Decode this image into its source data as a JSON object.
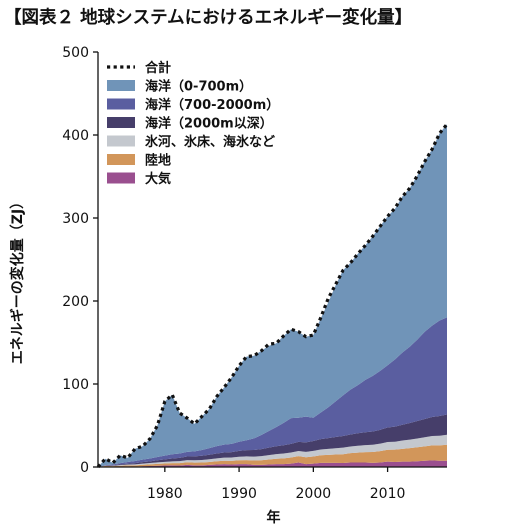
{
  "title": "【図表２ 地球システムにおけるエネルギー変化量】",
  "chart_data": {
    "type": "area",
    "stacked": true,
    "title": "【図表２ 地球システムにおけるエネルギー変化量】",
    "xlabel": "年",
    "ylabel": "エネルギーの変化量（ZJ）",
    "xlim": [
      1971,
      2018
    ],
    "ylim": [
      0,
      500
    ],
    "xticks": [
      1980,
      1990,
      2000,
      2010
    ],
    "yticks": [
      0,
      100,
      200,
      300,
      400,
      500
    ],
    "legend_position": "top-left",
    "total_name": "合計",
    "total_style": "dotted",
    "total_color": "#111111",
    "x": [
      1971,
      1972,
      1973,
      1974,
      1975,
      1976,
      1977,
      1978,
      1979,
      1980,
      1981,
      1982,
      1983,
      1984,
      1985,
      1986,
      1987,
      1988,
      1989,
      1990,
      1991,
      1992,
      1993,
      1994,
      1995,
      1996,
      1997,
      1998,
      1999,
      2000,
      2001,
      2002,
      2003,
      2004,
      2005,
      2006,
      2007,
      2008,
      2009,
      2010,
      2011,
      2012,
      2013,
      2014,
      2015,
      2016,
      2017,
      2018
    ],
    "series": [
      {
        "name": "大気",
        "color": "#9a4f8f",
        "values": [
          0,
          0.5,
          0.3,
          0.5,
          0.8,
          0.5,
          1,
          1.2,
          1.5,
          1.8,
          2,
          1.8,
          2.5,
          2,
          2,
          2.5,
          3,
          3.5,
          3,
          3.5,
          3.5,
          2.5,
          2.5,
          3,
          3.5,
          3.5,
          4,
          5.5,
          3.5,
          4,
          5,
          5,
          5,
          4.8,
          5.5,
          5.5,
          5.5,
          5,
          5.5,
          6.5,
          6,
          6.5,
          6.5,
          7,
          7.5,
          8,
          7.5,
          7.5
        ]
      },
      {
        "name": "陸地",
        "color": "#d2965a",
        "values": [
          0,
          0.8,
          0.7,
          1,
          1.2,
          1.5,
          1.7,
          2,
          2.2,
          2.4,
          2.6,
          2.9,
          3.2,
          3.3,
          3.5,
          3.6,
          3.9,
          4.1,
          4.4,
          4.6,
          4.8,
          5.3,
          5.6,
          6,
          6.5,
          6.9,
          7.4,
          7.6,
          8.2,
          8.6,
          9.1,
          9.6,
          10.1,
          10.6,
          11.2,
          11.8,
          12.4,
          13.1,
          13.6,
          14.3,
          14.9,
          15.4,
          16.2,
          16.8,
          17.4,
          18,
          18.6,
          19.3
        ]
      },
      {
        "name": "氷河、氷床、海氷など",
        "color": "#c4c8ce",
        "values": [
          0,
          0.2,
          0.5,
          0.8,
          1,
          1.2,
          1.4,
          1.6,
          1.9,
          2,
          2.2,
          2.4,
          2.6,
          2.8,
          3,
          3.3,
          3.5,
          3.7,
          4,
          4.3,
          4.5,
          4.7,
          5,
          5.3,
          5.5,
          5.8,
          6,
          6.2,
          6.5,
          6.8,
          7,
          7.2,
          7.5,
          7.9,
          8,
          8.3,
          8.5,
          8.7,
          9,
          9.3,
          9.6,
          10,
          10.3,
          10.6,
          11,
          11.3,
          11.6,
          12
        ]
      },
      {
        "name": "海洋（2000m以深）",
        "color": "#463e6a",
        "values": [
          0,
          0.2,
          0.5,
          0.8,
          1,
          1.5,
          1.8,
          2,
          2.5,
          3,
          3.5,
          3.9,
          4.3,
          4.7,
          5,
          5.4,
          5.8,
          6.2,
          6.5,
          7,
          7.5,
          8,
          8.5,
          9,
          9.5,
          10,
          10.5,
          11,
          11.5,
          12,
          12.5,
          13,
          13.5,
          14,
          14.5,
          15,
          15.5,
          16,
          16.7,
          17.5,
          18.2,
          19,
          20,
          21,
          22,
          23,
          23.8,
          24.5
        ]
      },
      {
        "name": "海洋（700-2000m）",
        "color": "#5a5ea0",
        "values": [
          0,
          0.5,
          1,
          1.5,
          2,
          2.5,
          3,
          3.5,
          4,
          4.5,
          5,
          5.3,
          5.6,
          6,
          7,
          8,
          9,
          9.5,
          10,
          11,
          12,
          14,
          17,
          20,
          23,
          27,
          31,
          29,
          31,
          28,
          32,
          37,
          43,
          49,
          54,
          58,
          63,
          67,
          71,
          75,
          81,
          87,
          92,
          98,
          105,
          110,
          115,
          117
        ]
      },
      {
        "name": "海洋（0-700m）",
        "color": "#7094b8",
        "values": [
          0,
          7.8,
          2,
          9.4,
          5,
          14.8,
          16.1,
          23.7,
          37.9,
          65.3,
          71.7,
          48.6,
          40.8,
          33.2,
          40.5,
          47.2,
          59.8,
          69,
          80.1,
          91.6,
          100.7,
          99.5,
          101.4,
          102.7,
          101,
          104.8,
          107.1,
          103.7,
          96.3,
          99.6,
          113.4,
          126.2,
          139.9,
          150.7,
          152.8,
          158.4,
          162.1,
          168.2,
          174.2,
          179.4,
          181.3,
          188.1,
          191,
          197.6,
          205.1,
          212.7,
          225.5,
          232.7
        ]
      }
    ],
    "total": [
      0,
      10,
      5,
      14,
      11,
      22,
      25,
      34,
      50,
      79,
      87,
      65,
      59,
      52,
      61,
      70,
      85,
      96,
      108,
      122,
      133,
      134,
      140,
      148,
      149,
      158,
      166,
      163,
      157,
      159,
      180,
      203,
      220,
      237,
      246,
      257,
      267,
      278,
      290,
      302,
      312,
      326,
      336,
      351,
      368,
      383,
      402,
      413
    ]
  }
}
